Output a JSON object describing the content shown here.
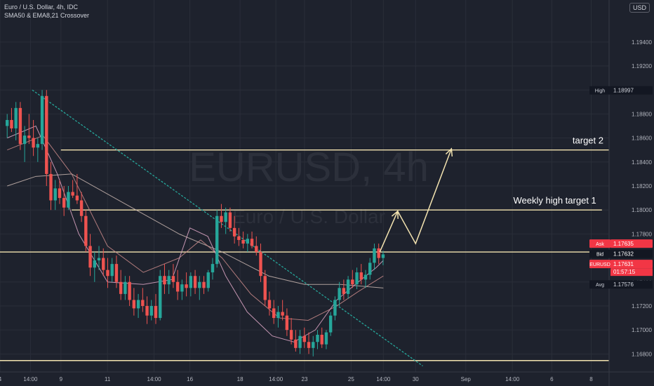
{
  "legend": {
    "symbol_line": "Euro / U.S. Dollar, 4h, IDC",
    "indicator_line": "SMA50 & EMA8,21 Crossover"
  },
  "currency_badge": "USD",
  "watermark": {
    "symbol": "EURUSD, 4h",
    "name": "Euro / U.S. Dollar"
  },
  "colors": {
    "background": "#1e222d",
    "grid": "#2a2e39",
    "candle_up": "#26a69a",
    "candle_down": "#ef5350",
    "trend_line": "#26a69a",
    "level_line": "#f3e3b0",
    "arrow": "#f3e3b0",
    "sma50": "#c9b6b0",
    "ema8": "#e0a8c8",
    "ema21": "#c98a8a",
    "price_tag_red": "#f23645",
    "price_tag_dark": "#131722",
    "axis_text": "#b2b5be"
  },
  "chart_data": {
    "type": "candlestick",
    "timeframe": "4h",
    "ylim": [
      1.1665,
      1.1975
    ],
    "y_ticks": [
      "1.19400",
      "1.19200",
      "1.19000",
      "1.18800",
      "1.18600",
      "1.18400",
      "1.18200",
      "1.18000",
      "1.17800",
      "1.17400",
      "1.17200",
      "1.17000",
      "1.16800"
    ],
    "x_ticks": [
      "4",
      "14:00",
      "9",
      "11",
      "14:00",
      "16",
      "18",
      "14:00",
      "23",
      "25",
      "14:00",
      "30",
      "Sep",
      "14:00",
      "6",
      "8"
    ],
    "x_tick_index": [
      0,
      8.5,
      17,
      30,
      43,
      53,
      67,
      77,
      85,
      98,
      107,
      116,
      130,
      143,
      154,
      165
    ],
    "candles": [
      {
        "o": 1.187,
        "h": 1.188,
        "l": 1.186,
        "c": 1.1875
      },
      {
        "o": 1.1875,
        "h": 1.1885,
        "l": 1.1865,
        "c": 1.1868
      },
      {
        "o": 1.1868,
        "h": 1.189,
        "l": 1.1858,
        "c": 1.1885
      },
      {
        "o": 1.1885,
        "h": 1.189,
        "l": 1.185,
        "c": 1.1855
      },
      {
        "o": 1.1855,
        "h": 1.187,
        "l": 1.184,
        "c": 1.1862
      },
      {
        "o": 1.1862,
        "h": 1.188,
        "l": 1.1855,
        "c": 1.186
      },
      {
        "o": 1.186,
        "h": 1.1875,
        "l": 1.1845,
        "c": 1.1852
      },
      {
        "o": 1.1852,
        "h": 1.186,
        "l": 1.184,
        "c": 1.1855
      },
      {
        "o": 1.1855,
        "h": 1.19,
        "l": 1.185,
        "c": 1.1895
      },
      {
        "o": 1.1895,
        "h": 1.19,
        "l": 1.182,
        "c": 1.183
      },
      {
        "o": 1.183,
        "h": 1.184,
        "l": 1.18,
        "c": 1.1808
      },
      {
        "o": 1.1808,
        "h": 1.1825,
        "l": 1.18,
        "c": 1.1818
      },
      {
        "o": 1.1818,
        "h": 1.1825,
        "l": 1.1805,
        "c": 1.181
      },
      {
        "o": 1.181,
        "h": 1.182,
        "l": 1.1795,
        "c": 1.1802
      },
      {
        "o": 1.1802,
        "h": 1.182,
        "l": 1.18,
        "c": 1.1815
      },
      {
        "o": 1.1815,
        "h": 1.1825,
        "l": 1.181,
        "c": 1.1812
      },
      {
        "o": 1.1812,
        "h": 1.183,
        "l": 1.1805,
        "c": 1.1808
      },
      {
        "o": 1.1808,
        "h": 1.1815,
        "l": 1.179,
        "c": 1.1795
      },
      {
        "o": 1.1795,
        "h": 1.18,
        "l": 1.1765,
        "c": 1.177
      },
      {
        "o": 1.177,
        "h": 1.178,
        "l": 1.1745,
        "c": 1.1752
      },
      {
        "o": 1.1752,
        "h": 1.1765,
        "l": 1.174,
        "c": 1.1758
      },
      {
        "o": 1.1758,
        "h": 1.177,
        "l": 1.175,
        "c": 1.176
      },
      {
        "o": 1.176,
        "h": 1.1768,
        "l": 1.1745,
        "c": 1.175
      },
      {
        "o": 1.175,
        "h": 1.176,
        "l": 1.1735,
        "c": 1.1745
      },
      {
        "o": 1.1745,
        "h": 1.176,
        "l": 1.174,
        "c": 1.1755
      },
      {
        "o": 1.1755,
        "h": 1.1762,
        "l": 1.1735,
        "c": 1.174
      },
      {
        "o": 1.174,
        "h": 1.175,
        "l": 1.1725,
        "c": 1.173
      },
      {
        "o": 1.173,
        "h": 1.1745,
        "l": 1.1725,
        "c": 1.174
      },
      {
        "o": 1.174,
        "h": 1.1745,
        "l": 1.172,
        "c": 1.1725
      },
      {
        "o": 1.1725,
        "h": 1.1735,
        "l": 1.1712,
        "c": 1.1718
      },
      {
        "o": 1.1718,
        "h": 1.173,
        "l": 1.171,
        "c": 1.1725
      },
      {
        "o": 1.1725,
        "h": 1.1735,
        "l": 1.1715,
        "c": 1.172
      },
      {
        "o": 1.172,
        "h": 1.1728,
        "l": 1.1705,
        "c": 1.1712
      },
      {
        "o": 1.1712,
        "h": 1.1725,
        "l": 1.1708,
        "c": 1.172
      },
      {
        "o": 1.172,
        "h": 1.173,
        "l": 1.1705,
        "c": 1.171
      },
      {
        "o": 1.171,
        "h": 1.175,
        "l": 1.1708,
        "c": 1.1745
      },
      {
        "o": 1.1745,
        "h": 1.1755,
        "l": 1.173,
        "c": 1.1738
      },
      {
        "o": 1.1738,
        "h": 1.175,
        "l": 1.173,
        "c": 1.1745
      },
      {
        "o": 1.1745,
        "h": 1.1755,
        "l": 1.1735,
        "c": 1.174
      },
      {
        "o": 1.174,
        "h": 1.175,
        "l": 1.1725,
        "c": 1.1732
      },
      {
        "o": 1.1732,
        "h": 1.1742,
        "l": 1.1725,
        "c": 1.1738
      },
      {
        "o": 1.1738,
        "h": 1.1748,
        "l": 1.1728,
        "c": 1.1735
      },
      {
        "o": 1.1735,
        "h": 1.1748,
        "l": 1.1728,
        "c": 1.1745
      },
      {
        "o": 1.1745,
        "h": 1.175,
        "l": 1.173,
        "c": 1.1735
      },
      {
        "o": 1.1735,
        "h": 1.1745,
        "l": 1.1725,
        "c": 1.174
      },
      {
        "o": 1.174,
        "h": 1.1745,
        "l": 1.173,
        "c": 1.1735
      },
      {
        "o": 1.1735,
        "h": 1.175,
        "l": 1.1732,
        "c": 1.1748
      },
      {
        "o": 1.1748,
        "h": 1.176,
        "l": 1.1742,
        "c": 1.1755
      },
      {
        "o": 1.1755,
        "h": 1.18,
        "l": 1.1752,
        "c": 1.1795
      },
      {
        "o": 1.1795,
        "h": 1.1805,
        "l": 1.1785,
        "c": 1.179
      },
      {
        "o": 1.179,
        "h": 1.1802,
        "l": 1.178,
        "c": 1.1798
      },
      {
        "o": 1.1798,
        "h": 1.1802,
        "l": 1.1782,
        "c": 1.1785
      },
      {
        "o": 1.1785,
        "h": 1.1795,
        "l": 1.1772,
        "c": 1.1778
      },
      {
        "o": 1.1778,
        "h": 1.1785,
        "l": 1.177,
        "c": 1.1775
      },
      {
        "o": 1.1775,
        "h": 1.1782,
        "l": 1.1768,
        "c": 1.1772
      },
      {
        "o": 1.1772,
        "h": 1.178,
        "l": 1.1765,
        "c": 1.1776
      },
      {
        "o": 1.1776,
        "h": 1.1782,
        "l": 1.1768,
        "c": 1.177
      },
      {
        "o": 1.177,
        "h": 1.1778,
        "l": 1.1762,
        "c": 1.1765
      },
      {
        "o": 1.1765,
        "h": 1.1772,
        "l": 1.174,
        "c": 1.1745
      },
      {
        "o": 1.1745,
        "h": 1.175,
        "l": 1.172,
        "c": 1.1725
      },
      {
        "o": 1.1725,
        "h": 1.1732,
        "l": 1.1712,
        "c": 1.1718
      },
      {
        "o": 1.1718,
        "h": 1.1725,
        "l": 1.1705,
        "c": 1.171
      },
      {
        "o": 1.171,
        "h": 1.172,
        "l": 1.1702,
        "c": 1.1715
      },
      {
        "o": 1.1715,
        "h": 1.1725,
        "l": 1.1708,
        "c": 1.1712
      },
      {
        "o": 1.1712,
        "h": 1.1718,
        "l": 1.1695,
        "c": 1.17
      },
      {
        "o": 1.17,
        "h": 1.171,
        "l": 1.1688,
        "c": 1.1692
      },
      {
        "o": 1.1692,
        "h": 1.17,
        "l": 1.1682,
        "c": 1.1685
      },
      {
        "o": 1.1685,
        "h": 1.17,
        "l": 1.168,
        "c": 1.1695
      },
      {
        "o": 1.1695,
        "h": 1.1702,
        "l": 1.1685,
        "c": 1.169
      },
      {
        "o": 1.169,
        "h": 1.1698,
        "l": 1.168,
        "c": 1.1685
      },
      {
        "o": 1.1685,
        "h": 1.1695,
        "l": 1.1678,
        "c": 1.169
      },
      {
        "o": 1.169,
        "h": 1.17,
        "l": 1.1684,
        "c": 1.1696
      },
      {
        "o": 1.1696,
        "h": 1.1702,
        "l": 1.1685,
        "c": 1.1688
      },
      {
        "o": 1.1688,
        "h": 1.17,
        "l": 1.1684,
        "c": 1.1698
      },
      {
        "o": 1.1698,
        "h": 1.1715,
        "l": 1.1695,
        "c": 1.1712
      },
      {
        "o": 1.1712,
        "h": 1.1728,
        "l": 1.1708,
        "c": 1.1725
      },
      {
        "o": 1.1725,
        "h": 1.174,
        "l": 1.172,
        "c": 1.1735
      },
      {
        "o": 1.1735,
        "h": 1.1742,
        "l": 1.1725,
        "c": 1.173
      },
      {
        "o": 1.173,
        "h": 1.1745,
        "l": 1.1726,
        "c": 1.1742
      },
      {
        "o": 1.1742,
        "h": 1.175,
        "l": 1.1735,
        "c": 1.1738
      },
      {
        "o": 1.1738,
        "h": 1.1752,
        "l": 1.1734,
        "c": 1.1748
      },
      {
        "o": 1.1748,
        "h": 1.1755,
        "l": 1.1738,
        "c": 1.1742
      },
      {
        "o": 1.1742,
        "h": 1.175,
        "l": 1.1735,
        "c": 1.1746
      },
      {
        "o": 1.1746,
        "h": 1.176,
        "l": 1.1742,
        "c": 1.1756
      },
      {
        "o": 1.1756,
        "h": 1.1772,
        "l": 1.175,
        "c": 1.1768
      },
      {
        "o": 1.1768,
        "h": 1.1772,
        "l": 1.1755,
        "c": 1.176
      },
      {
        "o": 1.176,
        "h": 1.1766,
        "l": 1.1754,
        "c": 1.1763
      }
    ],
    "x_cap": 170,
    "candle_x_start": 2,
    "candle_x_step": 1.22,
    "sma50": [
      [
        2,
        1.182
      ],
      [
        10,
        1.1828
      ],
      [
        20,
        1.183
      ],
      [
        35,
        1.1805
      ],
      [
        50,
        1.178
      ],
      [
        62,
        1.1765
      ],
      [
        75,
        1.1745
      ],
      [
        85,
        1.1738
      ],
      [
        95,
        1.1738
      ],
      [
        107,
        1.1735
      ]
    ],
    "ema8": [
      [
        2,
        1.186
      ],
      [
        10,
        1.187
      ],
      [
        16,
        1.183
      ],
      [
        22,
        1.178
      ],
      [
        30,
        1.174
      ],
      [
        40,
        1.1738
      ],
      [
        48,
        1.1742
      ],
      [
        53,
        1.1785
      ],
      [
        58,
        1.1778
      ],
      [
        63,
        1.1745
      ],
      [
        69,
        1.1715
      ],
      [
        76,
        1.1695
      ],
      [
        82,
        1.169
      ],
      [
        88,
        1.17
      ],
      [
        94,
        1.1725
      ],
      [
        100,
        1.174
      ],
      [
        105,
        1.1752
      ],
      [
        107,
        1.1758
      ]
    ],
    "ema21": [
      [
        2,
        1.185
      ],
      [
        12,
        1.1862
      ],
      [
        20,
        1.183
      ],
      [
        30,
        1.177
      ],
      [
        40,
        1.1748
      ],
      [
        50,
        1.176
      ],
      [
        56,
        1.1775
      ],
      [
        62,
        1.176
      ],
      [
        70,
        1.173
      ],
      [
        78,
        1.171
      ],
      [
        86,
        1.1708
      ],
      [
        94,
        1.172
      ],
      [
        100,
        1.1732
      ],
      [
        107,
        1.1745
      ]
    ],
    "trend_line": [
      [
        9,
        1.19
      ],
      [
        118,
        1.167
      ]
    ],
    "levels": [
      {
        "name": "target 2",
        "price": 1.185,
        "x_start": 17,
        "x_end": 170
      },
      {
        "name": "Weekly high target 1",
        "price": 1.18,
        "x_start": 20,
        "x_end": 168
      },
      {
        "name": "",
        "price": 1.1765,
        "x_start": 0,
        "x_end": 170
      },
      {
        "name": "",
        "price": 1.16745,
        "x_start": 0,
        "x_end": 170
      }
    ],
    "arrow_path": [
      [
        106,
        1.1765
      ],
      [
        111,
        1.1799
      ],
      [
        116,
        1.1772
      ],
      [
        126,
        1.1851
      ]
    ],
    "price_labels": {
      "high": {
        "label": "High",
        "value": "1.18997",
        "price": 1.18997
      },
      "ask": {
        "label": "Ask",
        "value": "1.17635",
        "price": 1.1772
      },
      "bid": {
        "label": "Bid",
        "value": "1.17632",
        "price": 1.17635
      },
      "last": {
        "label": "EURUSD",
        "value": "1.17631",
        "countdown": "01:57:15",
        "price": 1.1755
      },
      "avg": {
        "label": "Avg",
        "value": "1.17576",
        "price": 1.1738
      }
    }
  }
}
